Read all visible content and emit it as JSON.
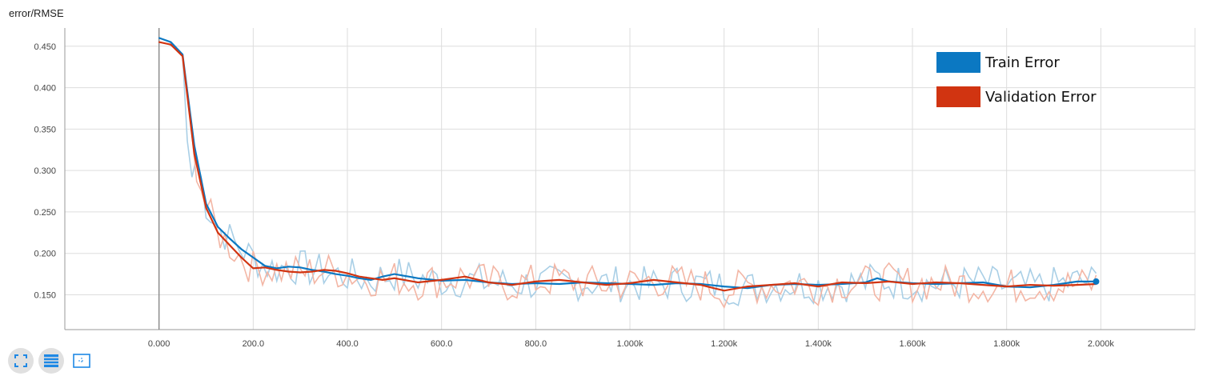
{
  "chart_title": "error/RMSE",
  "colors": {
    "train": "#0b78c2",
    "validation": "#d13411",
    "train_raw": "#a9cfe6",
    "validation_raw": "#f3b6a5",
    "grid": "#dddddd",
    "axis": "#9a9a9a"
  },
  "toolbar": {
    "buttons": [
      {
        "icon": "fit-domain-icon"
      },
      {
        "icon": "toggle-log-icon"
      },
      {
        "icon": "zoom-select-icon"
      }
    ]
  },
  "chart_data": {
    "type": "line",
    "title": "error/RMSE",
    "xlabel": "",
    "ylabel": "",
    "xlim": [
      -200,
      2200
    ],
    "ylim": [
      0.108,
      0.472
    ],
    "grid": true,
    "legend_position": "top-right",
    "x_ticks": [
      0,
      200,
      400,
      600,
      800,
      1000,
      1200,
      1400,
      1600,
      1800,
      2000
    ],
    "x_tick_labels": [
      "0.000",
      "200.0",
      "400.0",
      "600.0",
      "800.0",
      "1.000k",
      "1.200k",
      "1.400k",
      "1.600k",
      "1.800k",
      "2.000k"
    ],
    "y_ticks": [
      0.15,
      0.2,
      0.25,
      0.3,
      0.35,
      0.4,
      0.45
    ],
    "y_tick_labels": [
      "0.150",
      "0.200",
      "0.250",
      "0.300",
      "0.350",
      "0.400",
      "0.450"
    ],
    "series": [
      {
        "name": "Train Error",
        "color": "#0b78c2",
        "x": [
          0,
          25,
          50,
          75,
          100,
          125,
          150,
          175,
          200,
          225,
          250,
          275,
          300,
          325,
          350,
          375,
          400,
          425,
          450,
          475,
          500,
          550,
          600,
          650,
          700,
          750,
          800,
          850,
          900,
          950,
          1000,
          1050,
          1100,
          1150,
          1200,
          1250,
          1300,
          1350,
          1400,
          1450,
          1500,
          1525,
          1550,
          1600,
          1650,
          1700,
          1750,
          1800,
          1850,
          1900,
          1950,
          1990
        ],
        "y": [
          0.46,
          0.455,
          0.44,
          0.33,
          0.26,
          0.232,
          0.218,
          0.205,
          0.195,
          0.185,
          0.182,
          0.184,
          0.183,
          0.18,
          0.178,
          0.175,
          0.173,
          0.17,
          0.168,
          0.172,
          0.175,
          0.17,
          0.167,
          0.168,
          0.165,
          0.163,
          0.164,
          0.163,
          0.165,
          0.164,
          0.163,
          0.162,
          0.164,
          0.163,
          0.16,
          0.158,
          0.162,
          0.163,
          0.162,
          0.163,
          0.165,
          0.17,
          0.166,
          0.164,
          0.163,
          0.164,
          0.165,
          0.16,
          0.159,
          0.162,
          0.166,
          0.166
        ]
      },
      {
        "name": "Validation Error",
        "color": "#d13411",
        "x": [
          0,
          25,
          50,
          75,
          100,
          125,
          150,
          175,
          200,
          225,
          250,
          275,
          300,
          325,
          350,
          375,
          400,
          425,
          450,
          475,
          500,
          550,
          600,
          650,
          700,
          750,
          800,
          850,
          900,
          950,
          1000,
          1050,
          1100,
          1150,
          1200,
          1250,
          1300,
          1350,
          1400,
          1450,
          1500,
          1550,
          1600,
          1650,
          1700,
          1750,
          1800,
          1850,
          1900,
          1950,
          1990
        ],
        "y": [
          0.455,
          0.452,
          0.438,
          0.32,
          0.255,
          0.225,
          0.21,
          0.195,
          0.182,
          0.183,
          0.18,
          0.178,
          0.177,
          0.178,
          0.18,
          0.179,
          0.176,
          0.172,
          0.17,
          0.168,
          0.17,
          0.165,
          0.168,
          0.172,
          0.165,
          0.162,
          0.166,
          0.168,
          0.165,
          0.162,
          0.164,
          0.168,
          0.165,
          0.162,
          0.155,
          0.16,
          0.162,
          0.164,
          0.16,
          0.165,
          0.164,
          0.166,
          0.163,
          0.165,
          0.164,
          0.162,
          0.16,
          0.162,
          0.161,
          0.162,
          0.163
        ]
      }
    ]
  }
}
